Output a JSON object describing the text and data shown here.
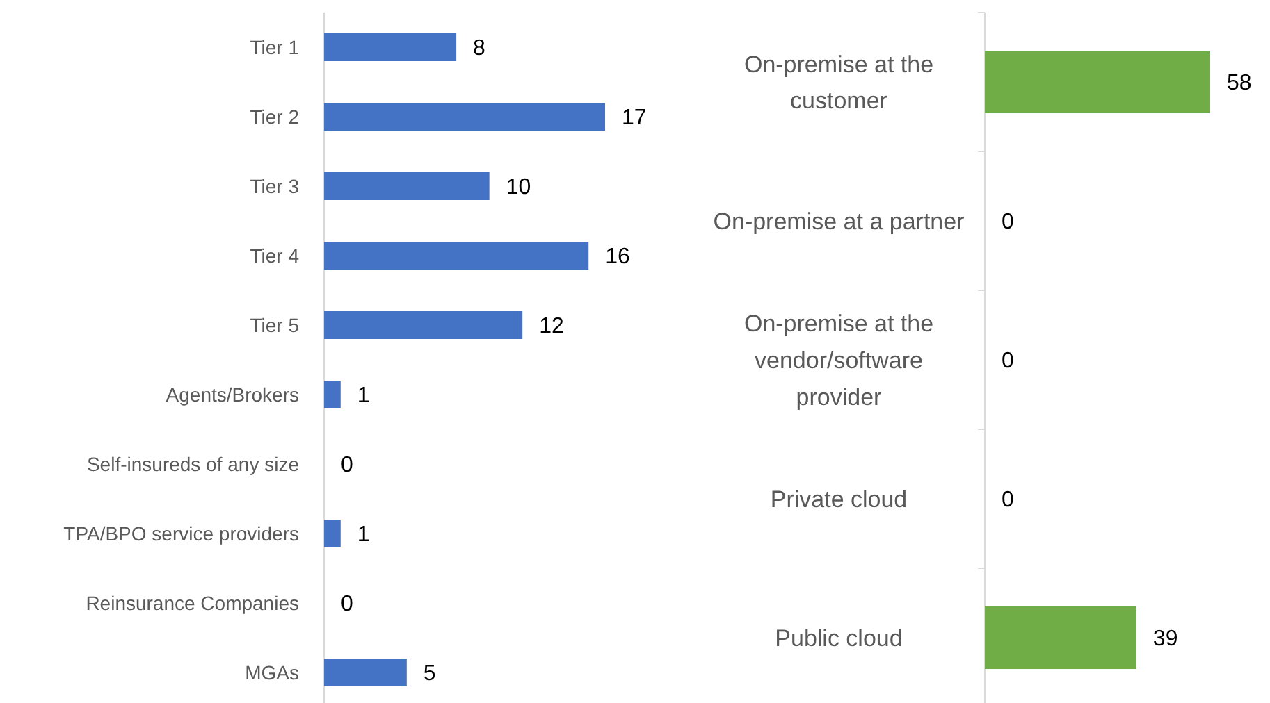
{
  "chart_data": [
    {
      "type": "bar",
      "orientation": "horizontal",
      "data_labels": true,
      "categories": [
        "Tier 1",
        "Tier 2",
        "Tier 3",
        "Tier 4",
        "Tier 5",
        "Agents/Brokers",
        "Self-insureds of any size",
        "TPA/BPO service providers",
        "Reinsurance Companies",
        "MGAs"
      ],
      "series": [
        {
          "color": "#4472c4",
          "values": [
            8,
            17,
            10,
            16,
            12,
            1,
            0,
            1,
            0,
            5
          ]
        }
      ]
    },
    {
      "type": "bar",
      "orientation": "horizontal",
      "data_labels": true,
      "categories": [
        "On-premise at the customer",
        "On-premise at a partner",
        "On-premise at the vendor/software provider",
        "Private cloud",
        "Public cloud"
      ],
      "series": [
        {
          "color": "#70ad47",
          "values": [
            58,
            0,
            0,
            0,
            39
          ]
        }
      ]
    }
  ]
}
